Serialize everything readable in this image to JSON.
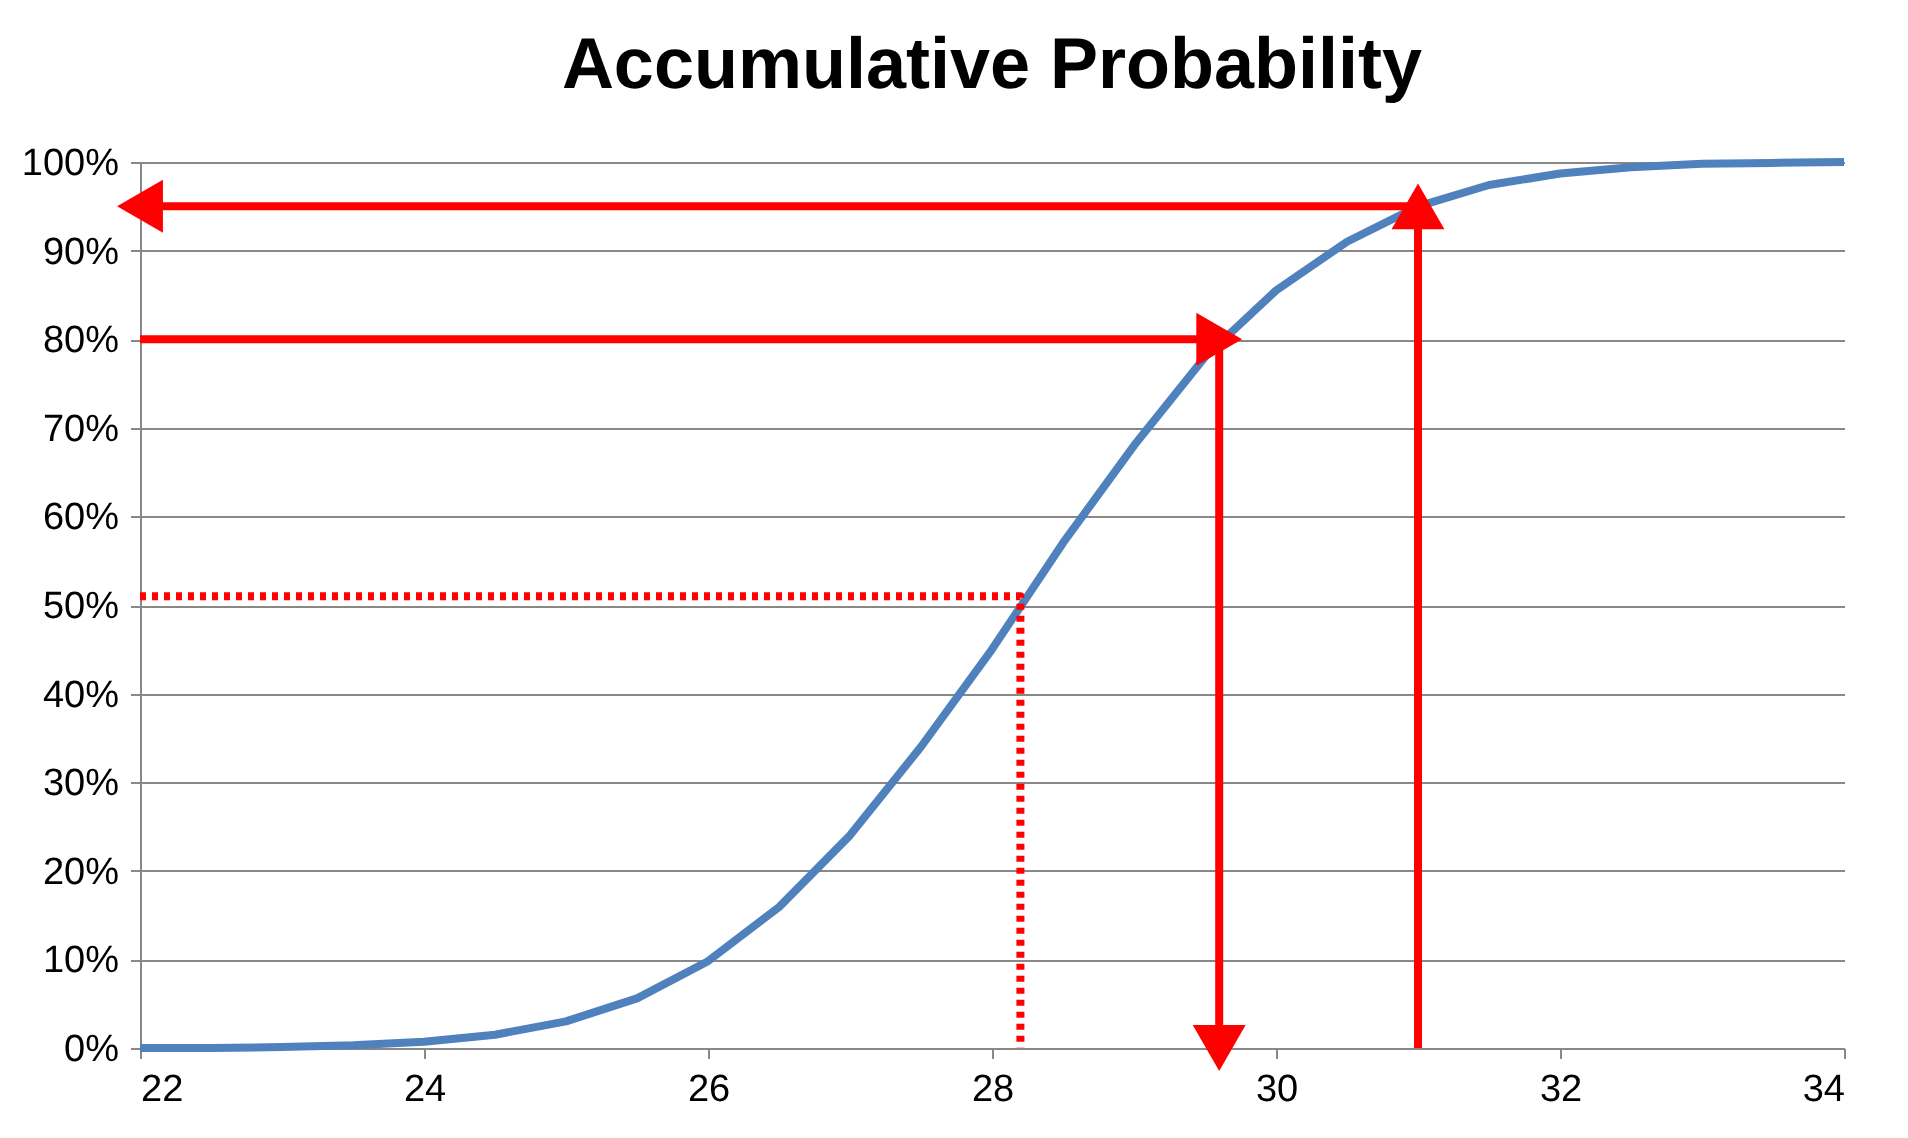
{
  "chart_data": {
    "type": "line",
    "title": "Accumulative Probability",
    "xlim": [
      22,
      34
    ],
    "xticks": [
      22,
      24,
      26,
      28,
      30,
      32,
      34
    ],
    "ylim": [
      0,
      100
    ],
    "yticks": [
      {
        "value": 0,
        "label": "0%"
      },
      {
        "value": 10,
        "label": "10%"
      },
      {
        "value": 20,
        "label": "20%"
      },
      {
        "value": 30,
        "label": "30%"
      },
      {
        "value": 40,
        "label": "40%"
      },
      {
        "value": 50,
        "label": "50%"
      },
      {
        "value": 60,
        "label": "60%"
      },
      {
        "value": 70,
        "label": "70%"
      },
      {
        "value": 80,
        "label": "80%"
      },
      {
        "value": 90,
        "label": "90%"
      },
      {
        "value": 100,
        "label": "100%"
      }
    ],
    "grid": "y",
    "x": [
      22,
      22.5,
      23,
      23.5,
      24,
      24.5,
      25,
      25.5,
      26,
      26.5,
      27,
      27.5,
      28,
      28.5,
      29,
      29.5,
      30,
      30.5,
      31,
      31.5,
      32,
      32.5,
      33,
      33.5,
      34
    ],
    "series": [
      {
        "color": "#4f81bd",
        "marker": "none",
        "line_style": "solid",
        "values": [
          0,
          0,
          0.1,
          0.3,
          0.7,
          1.5,
          3,
          5.6,
          9.8,
          15.9,
          24,
          34,
          45,
          57,
          68,
          78,
          85.5,
          91,
          95,
          97.4,
          98.7,
          99.4,
          99.8,
          99.9,
          100
        ]
      },
      {
        "type": "line",
        "color": "#ff0000",
        "marker": "none",
        "line_style": "dotted",
        "x": [
          22,
          28.2,
          28.2
        ],
        "values": [
          51,
          51,
          0
        ]
      },
      {
        "type": "line",
        "color": "#ff0000",
        "marker": "triangle",
        "line_style": "solid",
        "x": [
          22,
          29.6
        ],
        "values": [
          80,
          80
        ]
      },
      {
        "type": "line",
        "color": "#ff0000",
        "marker": "triangle",
        "line_style": "solid",
        "x": [
          29.6,
          29.6
        ],
        "values": [
          80,
          0
        ]
      },
      {
        "type": "line",
        "color": "#ff0000",
        "marker": "triangle",
        "line_style": "solid",
        "x": [
          31,
          31
        ],
        "values": [
          0,
          95
        ]
      },
      {
        "type": "line",
        "color": "#ff0000",
        "marker": "triangle",
        "line_style": "solid",
        "x": [
          31,
          22
        ],
        "values": [
          95,
          95
        ]
      }
    ]
  }
}
